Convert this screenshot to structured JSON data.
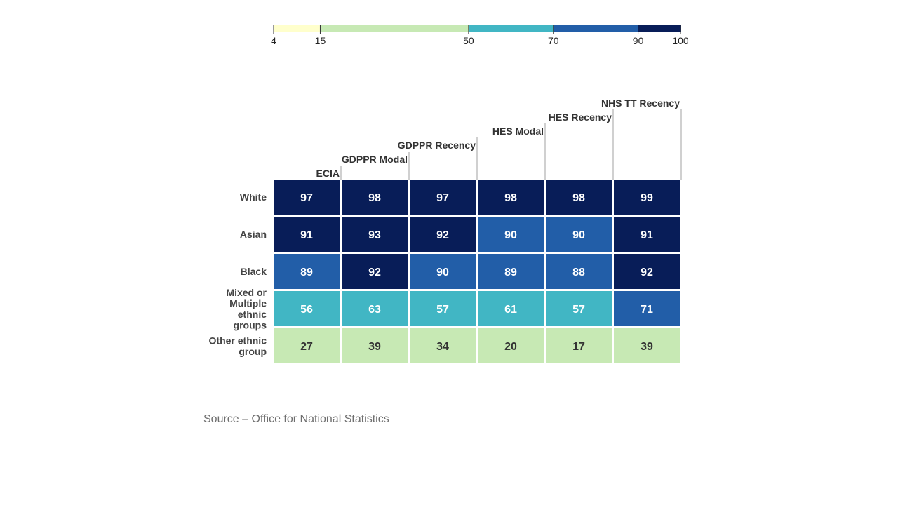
{
  "chart_data": {
    "type": "heatmap",
    "columns": [
      "ECIA",
      "GDPPR Modal",
      "GDPPR Recency",
      "HES Modal",
      "HES Recency",
      "NHS TT Recency"
    ],
    "rows": [
      "White",
      "Asian",
      "Black",
      "Mixed or Multiple ethnic groups",
      "Other ethnic group"
    ],
    "values": [
      [
        97,
        98,
        97,
        98,
        98,
        99
      ],
      [
        91,
        93,
        92,
        90,
        90,
        91
      ],
      [
        89,
        92,
        90,
        89,
        88,
        92
      ],
      [
        56,
        63,
        57,
        61,
        57,
        71
      ],
      [
        27,
        39,
        34,
        20,
        17,
        39
      ]
    ],
    "legend": {
      "breaks": [
        4,
        15,
        50,
        70,
        90,
        100
      ],
      "colors": [
        "#ffffcc",
        "#c7e9b4",
        "#41b6c4",
        "#225ea8",
        "#081d58"
      ]
    },
    "text_colors": {
      "light": "#ffffff",
      "dark": "#333333"
    }
  },
  "footer": {
    "source": "Source – Office for National Statistics"
  }
}
